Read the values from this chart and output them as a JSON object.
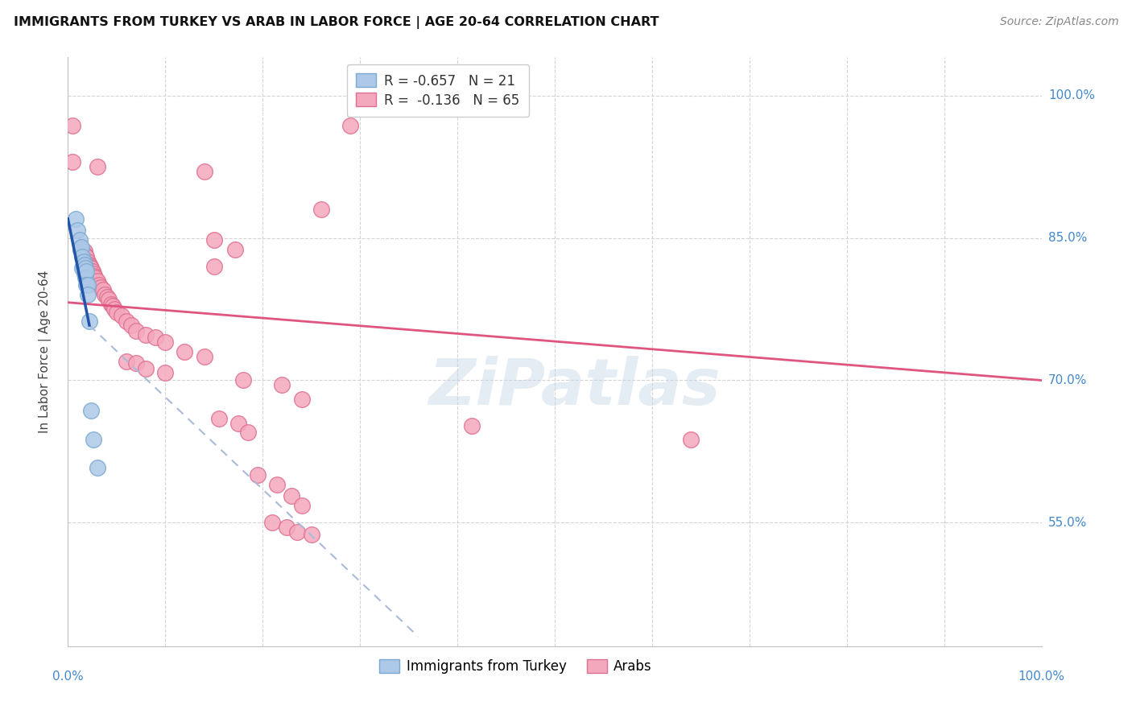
{
  "title": "IMMIGRANTS FROM TURKEY VS ARAB IN LABOR FORCE | AGE 20-64 CORRELATION CHART",
  "source": "Source: ZipAtlas.com",
  "ylabel": "In Labor Force | Age 20-64",
  "ytick_labels": [
    "100.0%",
    "85.0%",
    "70.0%",
    "55.0%"
  ],
  "ytick_values": [
    1.0,
    0.85,
    0.7,
    0.55
  ],
  "turkey_color": "#adc8e8",
  "arab_color": "#f4a8be",
  "turkey_edge": "#7aaacf",
  "arab_edge": "#e07090",
  "trend_turkey_color": "#2255aa",
  "trend_arab_color": "#e05580",
  "trend_turkey_dash_color": "#aabbd8",
  "watermark": "ZiPatlas",
  "turkey_points": [
    [
      0.008,
      0.87
    ],
    [
      0.01,
      0.858
    ],
    [
      0.012,
      0.848
    ],
    [
      0.013,
      0.838
    ],
    [
      0.014,
      0.84
    ],
    [
      0.015,
      0.83
    ],
    [
      0.015,
      0.818
    ],
    [
      0.016,
      0.825
    ],
    [
      0.016,
      0.82
    ],
    [
      0.017,
      0.822
    ],
    [
      0.017,
      0.812
    ],
    [
      0.018,
      0.818
    ],
    [
      0.018,
      0.808
    ],
    [
      0.019,
      0.815
    ],
    [
      0.019,
      0.8
    ],
    [
      0.02,
      0.8
    ],
    [
      0.02,
      0.79
    ],
    [
      0.022,
      0.762
    ],
    [
      0.024,
      0.668
    ],
    [
      0.026,
      0.638
    ],
    [
      0.03,
      0.608
    ]
  ],
  "arab_points": [
    [
      0.005,
      0.968
    ],
    [
      0.29,
      0.968
    ],
    [
      0.005,
      0.93
    ],
    [
      0.03,
      0.925
    ],
    [
      0.14,
      0.92
    ],
    [
      0.26,
      0.88
    ],
    [
      0.15,
      0.848
    ],
    [
      0.172,
      0.838
    ],
    [
      0.15,
      0.82
    ],
    [
      0.013,
      0.84
    ],
    [
      0.015,
      0.838
    ],
    [
      0.017,
      0.836
    ],
    [
      0.018,
      0.832
    ],
    [
      0.019,
      0.83
    ],
    [
      0.02,
      0.825
    ],
    [
      0.022,
      0.822
    ],
    [
      0.023,
      0.82
    ],
    [
      0.024,
      0.818
    ],
    [
      0.025,
      0.815
    ],
    [
      0.026,
      0.812
    ],
    [
      0.027,
      0.81
    ],
    [
      0.028,
      0.808
    ],
    [
      0.03,
      0.805
    ],
    [
      0.032,
      0.8
    ],
    [
      0.034,
      0.798
    ],
    [
      0.036,
      0.795
    ],
    [
      0.038,
      0.79
    ],
    [
      0.04,
      0.788
    ],
    [
      0.042,
      0.785
    ],
    [
      0.044,
      0.78
    ],
    [
      0.046,
      0.778
    ],
    [
      0.048,
      0.775
    ],
    [
      0.05,
      0.772
    ],
    [
      0.055,
      0.768
    ],
    [
      0.06,
      0.762
    ],
    [
      0.065,
      0.758
    ],
    [
      0.07,
      0.752
    ],
    [
      0.08,
      0.748
    ],
    [
      0.09,
      0.745
    ],
    [
      0.1,
      0.74
    ],
    [
      0.12,
      0.73
    ],
    [
      0.14,
      0.725
    ],
    [
      0.06,
      0.72
    ],
    [
      0.07,
      0.718
    ],
    [
      0.08,
      0.712
    ],
    [
      0.1,
      0.708
    ],
    [
      0.18,
      0.7
    ],
    [
      0.22,
      0.695
    ],
    [
      0.24,
      0.68
    ],
    [
      0.155,
      0.66
    ],
    [
      0.175,
      0.655
    ],
    [
      0.185,
      0.645
    ],
    [
      0.195,
      0.6
    ],
    [
      0.215,
      0.59
    ],
    [
      0.23,
      0.578
    ],
    [
      0.24,
      0.568
    ],
    [
      0.21,
      0.55
    ],
    [
      0.225,
      0.545
    ],
    [
      0.235,
      0.54
    ],
    [
      0.25,
      0.538
    ],
    [
      0.415,
      0.652
    ],
    [
      0.64,
      0.638
    ]
  ],
  "xlim": [
    0.0,
    1.0
  ],
  "ylim": [
    0.42,
    1.04
  ],
  "trend_arab_x0": 0.0,
  "trend_arab_y0": 0.782,
  "trend_arab_x1": 1.0,
  "trend_arab_y1": 0.7,
  "trend_turkey_x0": 0.0,
  "trend_turkey_y0": 0.87,
  "trend_turkey_x1": 0.022,
  "trend_turkey_y1": 0.758,
  "trend_turkey_dash_x0": 0.022,
  "trend_turkey_dash_y0": 0.758,
  "trend_turkey_dash_x1": 0.36,
  "trend_turkey_dash_y1": 0.43,
  "background_color": "#ffffff"
}
